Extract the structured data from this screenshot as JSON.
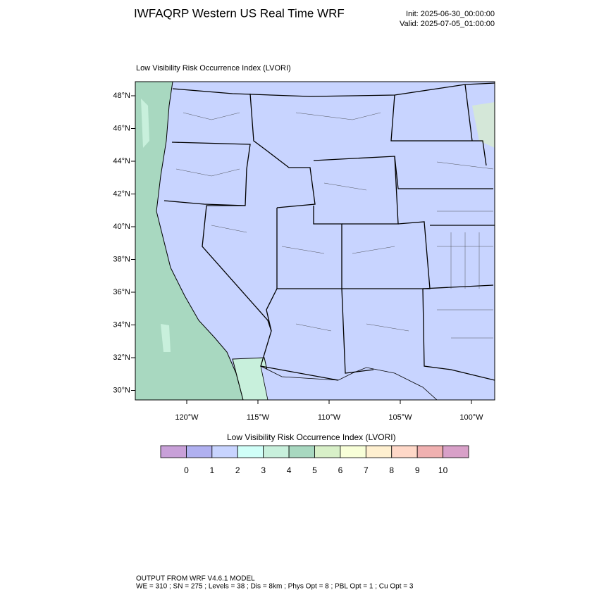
{
  "header": {
    "title": "IWFAQRP Western US Real Time WRF",
    "init": "Init: 2025-06-30_00:00:00",
    "valid": "Valid: 2025-07-05_01:00:00"
  },
  "map": {
    "title": "Low Visibility Risk Occurrence Index   (LVORI)",
    "lat_labels": [
      "48°N",
      "46°N",
      "44°N",
      "42°N",
      "40°N",
      "38°N",
      "36°N",
      "34°N",
      "32°N",
      "30°N"
    ],
    "lon_labels": [
      "120°W",
      "115°W",
      "110°W",
      "105°W",
      "100°W"
    ]
  },
  "colorbar": {
    "title": "Low Visibility Risk Occurrence Index  (LVORI)",
    "labels": [
      0,
      1,
      2,
      3,
      4,
      5,
      6,
      7,
      8,
      9,
      10
    ],
    "colors": [
      "#c8a0d8",
      "#b0b0f0",
      "#c8d4ff",
      "#d0fff8",
      "#c8f0dc",
      "#a8d8c0",
      "#d8f0c8",
      "#f8ffd8",
      "#fff0d0",
      "#ffd8c8",
      "#f0b0b0",
      "#d8a0c8"
    ]
  },
  "footer": {
    "line1": "OUTPUT FROM WRF V4.6.1 MODEL",
    "line2": "WE = 310 ; SN = 275 ; Levels = 38 ; Dis = 8km ; Phys Opt = 8 ; PBL Opt = 1 ; Cu Opt = 3"
  }
}
